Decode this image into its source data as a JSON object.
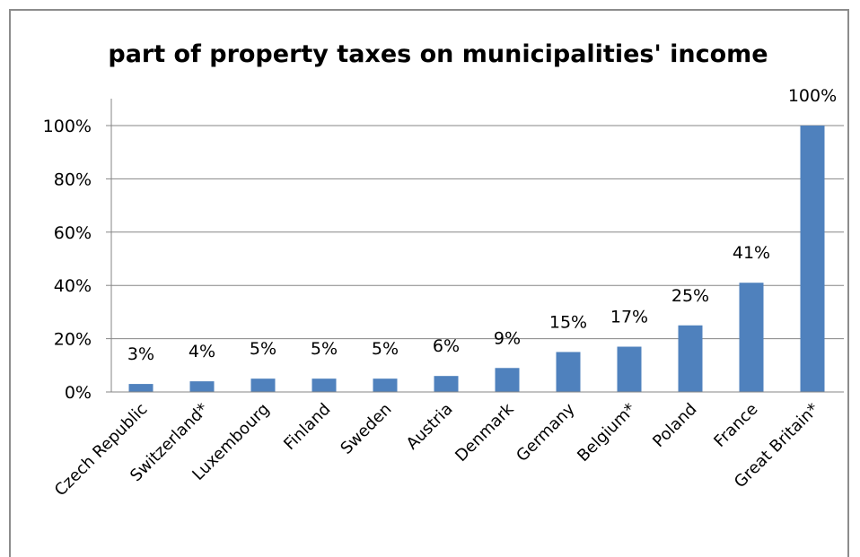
{
  "chart_data": {
    "type": "bar",
    "title": "part of property taxes on municipalities' income",
    "categories": [
      "Czech Republic",
      "Switzerland*",
      "Luxembourg",
      "Finland",
      "Sweden",
      "Austria",
      "Denmark",
      "Germany",
      "Belgium*",
      "Poland",
      "France",
      "Great Britain*"
    ],
    "values": [
      3,
      4,
      5,
      5,
      5,
      6,
      9,
      15,
      17,
      25,
      41,
      100
    ],
    "data_labels": [
      "3%",
      "4%",
      "5%",
      "5%",
      "5%",
      "6%",
      "9%",
      "15%",
      "17%",
      "25%",
      "41%",
      "100%"
    ],
    "y_ticks": [
      "0%",
      "20%",
      "40%",
      "60%",
      "80%",
      "100%"
    ],
    "ylim": [
      0,
      100
    ],
    "grid": true,
    "legend": "none",
    "bar_color": "#4f81bd",
    "gridline_color": "#868686"
  }
}
